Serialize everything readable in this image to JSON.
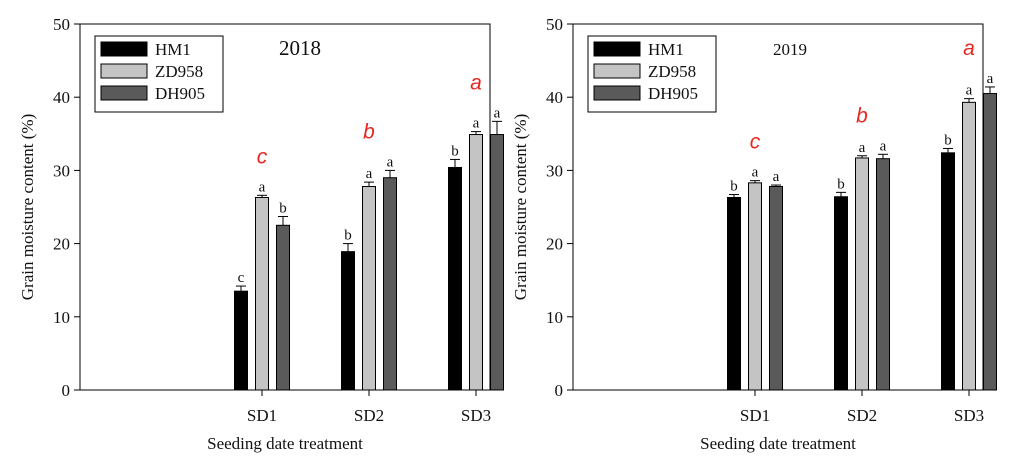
{
  "figure": {
    "colors": {
      "HM1": "#000000",
      "ZD958": "#c4c4c4",
      "DH905": "#5a5a5a",
      "significance": "#e8261f",
      "axis": "#000000"
    }
  },
  "chart_data": [
    {
      "type": "bar",
      "title": "2018",
      "xlabel": "Seeding date treatment",
      "ylabel": "Grain moisture content (%)",
      "ylim": [
        0,
        50
      ],
      "yticks": [
        0,
        10,
        20,
        30,
        40,
        50
      ],
      "categories": [
        "SD1",
        "SD2",
        "SD3"
      ],
      "legend": [
        "HM1",
        "ZD958",
        "DH905"
      ],
      "legend_position": "top-left",
      "series": [
        {
          "name": "HM1",
          "values": [
            13.5,
            18.9,
            30.4
          ],
          "errors": [
            0.7,
            1.1,
            1.1
          ],
          "letters": [
            "c",
            "b",
            "b"
          ]
        },
        {
          "name": "ZD958",
          "values": [
            26.3,
            27.8,
            34.9
          ],
          "errors": [
            0.3,
            0.6,
            0.4
          ],
          "letters": [
            "a",
            "a",
            "a"
          ]
        },
        {
          "name": "DH905",
          "values": [
            22.5,
            29.0,
            34.9
          ],
          "errors": [
            1.2,
            1.0,
            1.8
          ],
          "letters": [
            "b",
            "a",
            "a"
          ]
        }
      ],
      "group_letters": [
        "c",
        "b",
        "a"
      ]
    },
    {
      "type": "bar",
      "title": "2019",
      "xlabel": "Seeding date treatment",
      "ylabel": "Grain moisture content (%)",
      "ylim": [
        0,
        50
      ],
      "yticks": [
        0,
        10,
        20,
        30,
        40,
        50
      ],
      "categories": [
        "SD1",
        "SD2",
        "SD3"
      ],
      "legend": [
        "HM1",
        "ZD958",
        "DH905"
      ],
      "legend_position": "top-left",
      "series": [
        {
          "name": "HM1",
          "values": [
            26.3,
            26.4,
            32.4
          ],
          "errors": [
            0.4,
            0.6,
            0.6
          ],
          "letters": [
            "b",
            "b",
            "b"
          ]
        },
        {
          "name": "ZD958",
          "values": [
            28.3,
            31.7,
            39.3
          ],
          "errors": [
            0.3,
            0.3,
            0.5
          ],
          "letters": [
            "a",
            "a",
            "a"
          ]
        },
        {
          "name": "DH905",
          "values": [
            27.8,
            31.6,
            40.5
          ],
          "errors": [
            0.2,
            0.6,
            0.9
          ],
          "letters": [
            "a",
            "a",
            "a"
          ]
        }
      ],
      "group_letters": [
        "c",
        "b",
        "a"
      ]
    }
  ]
}
